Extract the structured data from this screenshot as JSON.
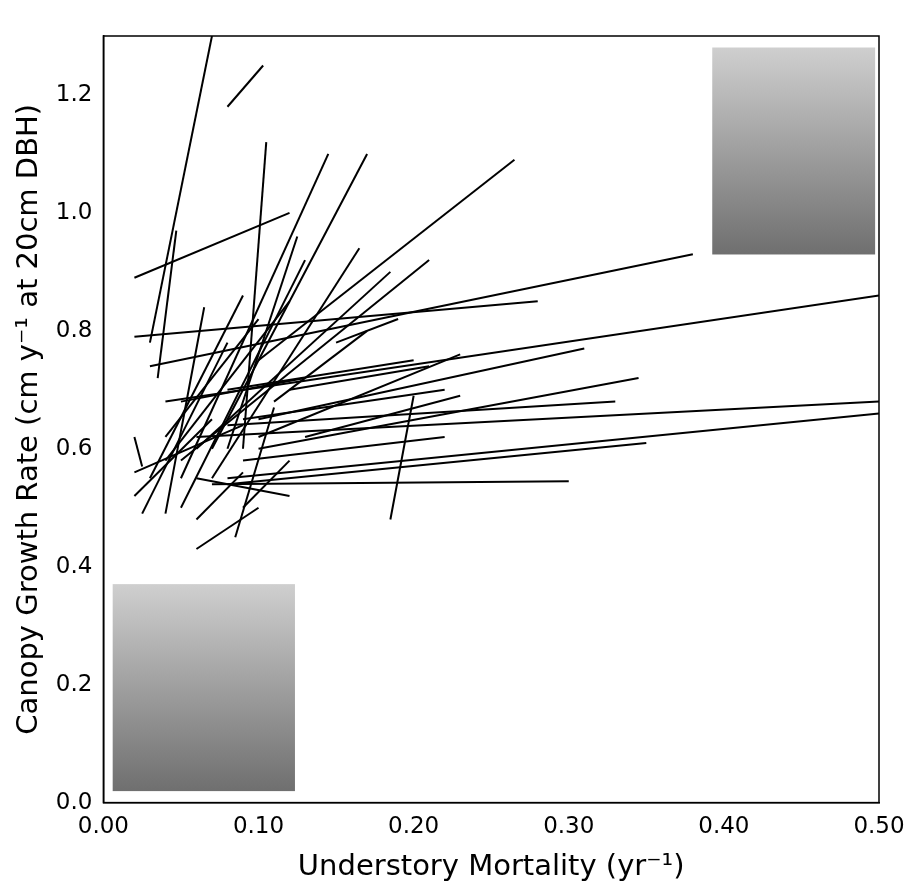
{
  "chart_data": {
    "type": "line_segments",
    "x_label": "Understory Mortality (yr⁻¹)",
    "y_label": "Canopy Growth Rate (cm y⁻¹ at 20cm DBH)",
    "color": "#000000",
    "grid": false,
    "xlim": [
      0,
      0.5
    ],
    "ylim": [
      0,
      1.3
    ],
    "xticks": [
      {
        "value": 0,
        "label": "0.00"
      },
      {
        "value": 0.1,
        "label": "0.10"
      },
      {
        "value": 0.2,
        "label": "0.20"
      },
      {
        "value": 0.3,
        "label": "0.30"
      },
      {
        "value": 0.4,
        "label": "0.40"
      },
      {
        "value": 0.5,
        "label": "0.50"
      }
    ],
    "yticks": [
      {
        "value": 0,
        "label": "0.0"
      },
      {
        "value": 0.2,
        "label": "0.2"
      },
      {
        "value": 0.4,
        "label": "0.4"
      },
      {
        "value": 0.6,
        "label": "0.6"
      },
      {
        "value": 0.8,
        "label": "0.8"
      },
      {
        "value": 1.0,
        "label": "1.0"
      },
      {
        "value": 1.2,
        "label": "1.2"
      }
    ],
    "series": [
      {
        "x": [
          0.03,
          0.07
        ],
        "values": [
          0.78,
          1.3
        ]
      },
      {
        "x": [
          0.08,
          0.103
        ],
        "values": [
          1.18,
          1.25
        ]
      },
      {
        "x": [
          0.02,
          0.12
        ],
        "values": [
          0.89,
          1.0
        ]
      },
      {
        "x": [
          0.035,
          0.047
        ],
        "values": [
          0.72,
          0.97
        ]
      },
      {
        "x": [
          0.09,
          0.105
        ],
        "values": [
          0.6,
          1.12
        ]
      },
      {
        "x": [
          0.05,
          0.145
        ],
        "values": [
          0.55,
          1.1
        ]
      },
      {
        "x": [
          0.07,
          0.17
        ],
        "values": [
          0.6,
          1.1
        ]
      },
      {
        "x": [
          0.1,
          0.265
        ],
        "values": [
          0.75,
          1.09
        ]
      },
      {
        "x": [
          0.02,
          0.28
        ],
        "values": [
          0.79,
          0.85
        ]
      },
      {
        "x": [
          0.03,
          0.38
        ],
        "values": [
          0.74,
          0.93
        ]
      },
      {
        "x": [
          0.04,
          0.5
        ],
        "values": [
          0.68,
          0.86
        ]
      },
      {
        "x": [
          0.06,
          0.5
        ],
        "values": [
          0.62,
          0.68
        ]
      },
      {
        "x": [
          0.08,
          0.5
        ],
        "values": [
          0.55,
          0.66
        ]
      },
      {
        "x": [
          0.08,
          0.35
        ],
        "values": [
          0.54,
          0.61
        ]
      },
      {
        "x": [
          0.07,
          0.3
        ],
        "values": [
          0.54,
          0.545
        ]
      },
      {
        "x": [
          0.1,
          0.345
        ],
        "values": [
          0.6,
          0.72
        ]
      },
      {
        "x": [
          0.08,
          0.33
        ],
        "values": [
          0.64,
          0.68
        ]
      },
      {
        "x": [
          0.1,
          0.31
        ],
        "values": [
          0.65,
          0.77
        ]
      },
      {
        "x": [
          0.12,
          0.21
        ],
        "values": [
          0.7,
          0.74
        ]
      },
      {
        "x": [
          0.08,
          0.2
        ],
        "values": [
          0.7,
          0.75
        ]
      },
      {
        "x": [
          0.185,
          0.2
        ],
        "values": [
          0.48,
          0.69
        ]
      },
      {
        "x": [
          0.05,
          0.21
        ],
        "values": [
          0.58,
          0.92
        ]
      },
      {
        "x": [
          0.06,
          0.185
        ],
        "values": [
          0.6,
          0.9
        ]
      },
      {
        "x": [
          0.07,
          0.165
        ],
        "values": [
          0.55,
          0.94
        ]
      },
      {
        "x": [
          0.05,
          0.13
        ],
        "values": [
          0.5,
          0.92
        ]
      },
      {
        "x": [
          0.06,
          0.1
        ],
        "values": [
          0.43,
          0.5
        ]
      },
      {
        "x": [
          0.085,
          0.11
        ],
        "values": [
          0.45,
          0.67
        ]
      },
      {
        "x": [
          0.04,
          0.065
        ],
        "values": [
          0.49,
          0.84
        ]
      },
      {
        "x": [
          0.025,
          0.08
        ],
        "values": [
          0.49,
          0.78
        ]
      },
      {
        "x": [
          0.02,
          0.07
        ],
        "values": [
          0.52,
          0.65
        ]
      },
      {
        "x": [
          0.02,
          0.09
        ],
        "values": [
          0.56,
          0.64
        ]
      },
      {
        "x": [
          0.02,
          0.025
        ],
        "values": [
          0.62,
          0.57
        ]
      },
      {
        "x": [
          0.1,
          0.23
        ],
        "values": [
          0.62,
          0.76
        ]
      },
      {
        "x": [
          0.09,
          0.22
        ],
        "values": [
          0.65,
          0.7
        ]
      },
      {
        "x": [
          0.06,
          0.12
        ],
        "values": [
          0.55,
          0.52
        ]
      },
      {
        "x": [
          0.09,
          0.22
        ],
        "values": [
          0.58,
          0.62
        ]
      },
      {
        "x": [
          0.13,
          0.23
        ],
        "values": [
          0.62,
          0.69
        ]
      },
      {
        "x": [
          0.04,
          0.12
        ],
        "values": [
          0.58,
          0.85
        ]
      },
      {
        "x": [
          0.08,
          0.125
        ],
        "values": [
          0.6,
          0.96
        ]
      },
      {
        "x": [
          0.03,
          0.09
        ],
        "values": [
          0.55,
          0.86
        ]
      },
      {
        "x": [
          0.05,
          0.13
        ],
        "values": [
          0.68,
          0.72
        ]
      },
      {
        "x": [
          0.11,
          0.17
        ],
        "values": [
          0.68,
          0.8
        ]
      },
      {
        "x": [
          0.04,
          0.1
        ],
        "values": [
          0.62,
          0.82
        ]
      },
      {
        "x": [
          0.09,
          0.12
        ],
        "values": [
          0.5,
          0.58
        ]
      },
      {
        "x": [
          0.15,
          0.19
        ],
        "values": [
          0.78,
          0.82
        ]
      },
      {
        "x": [
          0.06,
          0.09
        ],
        "values": [
          0.48,
          0.56
        ]
      }
    ]
  }
}
